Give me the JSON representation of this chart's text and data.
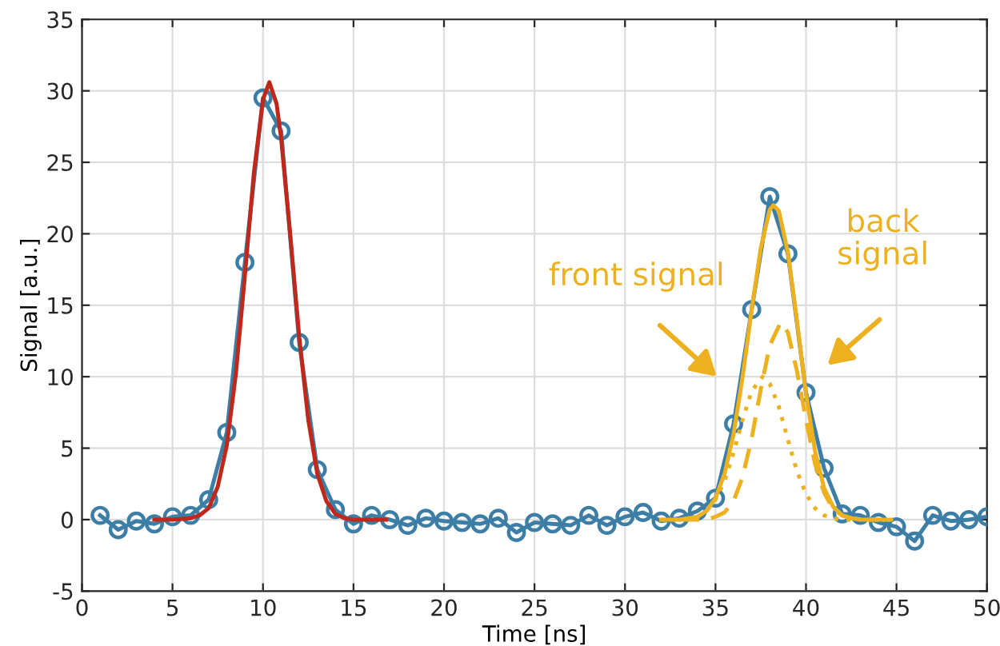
{
  "chart_data": {
    "type": "line",
    "xlabel": "Time [ns]",
    "ylabel": "Signal [a.u.]",
    "xlim": [
      0,
      50
    ],
    "ylim": [
      -5,
      35
    ],
    "xticks": [
      0,
      5,
      10,
      15,
      20,
      25,
      30,
      35,
      40,
      45,
      50
    ],
    "yticks": [
      -5,
      0,
      5,
      10,
      15,
      20,
      25,
      30,
      35
    ],
    "grid": true,
    "series": [
      {
        "color": "#3d7ea6",
        "marker": "circle",
        "line_style": "solid",
        "x": [
          1,
          2,
          3,
          4,
          5,
          6,
          7,
          8,
          9,
          10,
          11,
          12,
          13,
          14,
          15,
          16,
          17,
          18,
          19,
          20,
          21,
          22,
          23,
          24,
          25,
          26,
          27,
          28,
          29,
          30,
          31,
          32,
          33,
          34,
          35,
          36,
          37,
          38,
          39,
          40,
          41,
          42,
          43,
          44,
          45,
          46,
          47,
          48,
          49,
          50
        ],
        "values": [
          0.3,
          -0.7,
          -0.1,
          -0.3,
          0.2,
          0.3,
          1.4,
          6.1,
          18.0,
          29.5,
          27.2,
          12.4,
          3.5,
          0.7,
          -0.3,
          0.3,
          0.0,
          -0.4,
          0.1,
          -0.1,
          -0.2,
          -0.3,
          0.1,
          -0.9,
          -0.2,
          -0.3,
          -0.4,
          0.3,
          -0.4,
          0.2,
          0.5,
          -0.1,
          0.1,
          0.6,
          1.5,
          6.7,
          14.7,
          22.6,
          18.6,
          8.9,
          3.6,
          0.4,
          0.3,
          -0.2,
          -0.5,
          -1.5,
          0.3,
          -0.1,
          0.0,
          0.2
        ]
      },
      {
        "color": "#c0281c",
        "marker": "none",
        "line_style": "solid",
        "x": [
          4,
          5,
          6,
          6.5,
          7,
          7.5,
          8,
          8.5,
          9,
          9.5,
          10,
          10.35,
          10.75,
          11,
          11.5,
          12,
          12.5,
          13,
          13.5,
          14,
          14.5,
          15,
          16,
          16.8
        ],
        "values": [
          0.0,
          0.0,
          0.1,
          0.3,
          0.8,
          2.3,
          5.2,
          10.2,
          17.1,
          24.3,
          29.4,
          30.6,
          29.1,
          26.7,
          20.0,
          12.8,
          7.0,
          3.2,
          1.3,
          0.4,
          0.1,
          0.0,
          0.0,
          0.0
        ]
      },
      {
        "color": "#edb120",
        "marker": "none",
        "line_style": "solid",
        "x": [
          32,
          33,
          33.5,
          34,
          34.5,
          35,
          35.5,
          36,
          36.5,
          37,
          37.5,
          38,
          38.2,
          38.5,
          39,
          39.5,
          40,
          40.5,
          41,
          41.5,
          42,
          42.5,
          43,
          44,
          44.7
        ],
        "values": [
          0.0,
          0.0,
          0.1,
          0.2,
          0.6,
          1.5,
          3.2,
          6.0,
          10.0,
          14.7,
          19.0,
          21.7,
          22.0,
          21.6,
          18.7,
          13.9,
          8.8,
          4.8,
          2.2,
          0.9,
          0.3,
          0.1,
          0.0,
          0.0,
          0.0
        ]
      },
      {
        "color": "#edb120",
        "marker": "none",
        "line_style": "dashed",
        "x": [
          33,
          34,
          34.5,
          35,
          35.5,
          36,
          36.5,
          37,
          37.5,
          38,
          38.6,
          39,
          39.5,
          40,
          40.5,
          41,
          41.5,
          42,
          42.5,
          43,
          44
        ],
        "values": [
          0.0,
          0.0,
          0.0,
          0.2,
          0.5,
          1.3,
          3.0,
          5.7,
          9.1,
          12.2,
          13.8,
          13.1,
          10.4,
          7.0,
          3.9,
          1.9,
          0.7,
          0.3,
          0.1,
          0.0,
          0.0
        ]
      },
      {
        "color": "#edb120",
        "marker": "none",
        "line_style": "dotted",
        "x": [
          32,
          33,
          33.5,
          34,
          34.5,
          35,
          35.5,
          36,
          36.5,
          37,
          37.6,
          38,
          38.5,
          39,
          39.5,
          40,
          40.5,
          41,
          41.5,
          42,
          43
        ],
        "values": [
          0.0,
          0.0,
          0.1,
          0.2,
          0.6,
          1.4,
          2.7,
          4.7,
          7.0,
          9.0,
          10.0,
          9.5,
          7.9,
          5.6,
          3.4,
          1.8,
          0.8,
          0.3,
          0.1,
          0.0,
          0.0
        ]
      }
    ],
    "annotations": [
      "front signal",
      "back signal"
    ]
  }
}
